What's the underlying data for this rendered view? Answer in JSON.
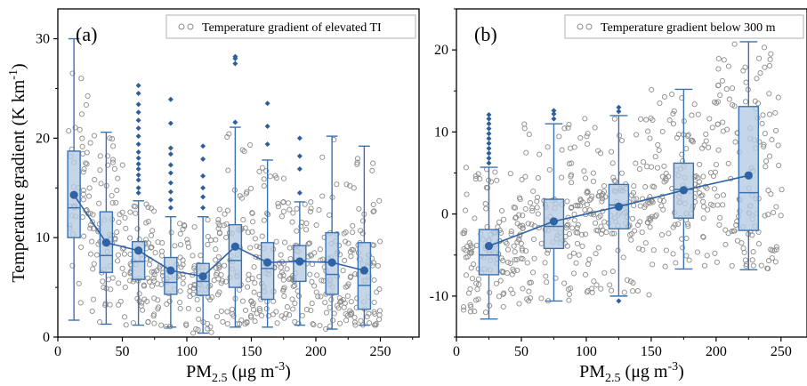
{
  "colors": {
    "box_fill": "#b8cce4",
    "box_stroke": "#3a72b0",
    "mean": "#2e63a6",
    "outlier": "#2e5f9a",
    "scatter": "#8c8c8c",
    "axis": "#000000"
  },
  "chart_data": [
    {
      "type": "box+scatter",
      "panel_label": "(a)",
      "xlabel": "PM",
      "xlabel_sub": "2.5",
      "xlabel_unit": " (μg m",
      "xlabel_sup": "-3",
      "xlabel_close": ")",
      "ylabel": "Temperature gradient (K km",
      "ylabel_sup": "-1",
      "ylabel_close": ")",
      "xlim": [
        0,
        280
      ],
      "ylim": [
        0,
        33
      ],
      "xticks": [
        0,
        50,
        100,
        150,
        200,
        250
      ],
      "yticks": [
        0,
        10,
        20,
        30
      ],
      "legend": "Temperature gradient of elevated TI",
      "legend_position": "top-right",
      "scatter_range": {
        "x": [
          8,
          280
        ],
        "y": [
          0.3,
          27
        ]
      },
      "boxes": [
        {
          "x": 12.5,
          "whislo": 1.7,
          "q1": 10.0,
          "med": 13.0,
          "q3": 18.7,
          "whishi": 30.0,
          "mean": 14.3,
          "fliers": []
        },
        {
          "x": 37.5,
          "whislo": 1.3,
          "q1": 6.5,
          "med": 8.2,
          "q3": 12.6,
          "whishi": 20.6,
          "mean": 9.5,
          "fliers": []
        },
        {
          "x": 62.5,
          "whislo": 1.2,
          "q1": 5.8,
          "med": 7.6,
          "q3": 9.6,
          "whishi": 13.7,
          "mean": 8.7,
          "fliers": [
            14.5,
            15.0,
            15.8,
            16.3,
            16.9,
            17.4,
            18.0,
            18.6,
            19.4,
            20.2,
            21.0,
            21.8,
            22.6,
            23.4,
            24.5,
            25.3
          ]
        },
        {
          "x": 87.5,
          "whislo": 1.0,
          "q1": 4.3,
          "med": 5.5,
          "q3": 8.0,
          "whishi": 12.1,
          "mean": 6.7,
          "fliers": [
            13.0,
            13.8,
            14.6,
            15.5,
            16.5,
            17.3,
            18.4,
            19.0,
            21.5,
            23.9
          ]
        },
        {
          "x": 112.5,
          "whislo": 0.4,
          "q1": 4.2,
          "med": 5.6,
          "q3": 7.4,
          "whishi": 12.1,
          "mean": 6.1,
          "fliers": [
            13.0,
            14.1,
            15.0,
            16.2,
            17.9,
            19.2
          ]
        },
        {
          "x": 137.5,
          "whislo": 1.0,
          "q1": 5.0,
          "med": 7.7,
          "q3": 11.3,
          "whishi": 21.1,
          "mean": 9.1,
          "fliers": [
            21.6,
            27.5,
            28.0,
            28.2
          ]
        },
        {
          "x": 162.5,
          "whislo": 1.0,
          "q1": 3.8,
          "med": 6.9,
          "q3": 9.5,
          "whishi": 17.8,
          "mean": 7.5,
          "fliers": [
            19.4,
            21.2,
            23.5
          ]
        },
        {
          "x": 187.5,
          "whislo": 1.2,
          "q1": 5.6,
          "med": 7.7,
          "q3": 9.2,
          "whishi": 13.6,
          "mean": 7.6,
          "fliers": [
            14.5,
            16.9,
            18.2,
            20.0
          ]
        },
        {
          "x": 212.5,
          "whislo": 0.8,
          "q1": 4.3,
          "med": 6.3,
          "q3": 10.5,
          "whishi": 20.2,
          "mean": 7.5,
          "fliers": []
        },
        {
          "x": 237.5,
          "whislo": 1.2,
          "q1": 2.8,
          "med": 5.2,
          "q3": 9.5,
          "whishi": 19.2,
          "mean": 6.7,
          "fliers": []
        }
      ]
    },
    {
      "type": "box+scatter",
      "panel_label": "(b)",
      "xlabel": "PM",
      "xlabel_sub": "2.5",
      "xlabel_unit": " (μg m",
      "xlabel_sup": "-3",
      "xlabel_close": ")",
      "xlim": [
        0,
        270
      ],
      "ylim": [
        -15,
        25
      ],
      "xticks": [
        0,
        50,
        100,
        150,
        200,
        250
      ],
      "yticks": [
        -10,
        0,
        10,
        20
      ],
      "legend": "Temperature gradient below 300 m",
      "legend_position": "top-right",
      "scatter_range": {
        "x": [
          5,
          270
        ],
        "y": [
          -12,
          21
        ]
      },
      "boxes": [
        {
          "x": 25,
          "whislo": -12.8,
          "q1": -7.4,
          "med": -5.0,
          "q3": -1.9,
          "whishi": 5.7,
          "mean": -3.9,
          "fliers": [
            6.2,
            6.8,
            7.4,
            8.0,
            8.6,
            9.2,
            9.8,
            10.4,
            11.0,
            11.6,
            12.1
          ]
        },
        {
          "x": 75,
          "whislo": -10.6,
          "q1": -4.2,
          "med": -1.5,
          "q3": 1.8,
          "whishi": 11.0,
          "mean": -0.9,
          "fliers": [
            11.6,
            12.2,
            12.6
          ]
        },
        {
          "x": 125,
          "whislo": -10.0,
          "q1": -1.8,
          "med": 1.1,
          "q3": 3.6,
          "whishi": 12.0,
          "mean": 0.9,
          "fliers": [
            -10.6,
            12.5,
            13.0
          ]
        },
        {
          "x": 175,
          "whislo": -6.7,
          "q1": -0.5,
          "med": 3.0,
          "q3": 6.2,
          "whishi": 15.2,
          "mean": 2.9,
          "fliers": []
        },
        {
          "x": 225,
          "whislo": -6.8,
          "q1": -2.0,
          "med": 2.6,
          "q3": 13.1,
          "whishi": 21.0,
          "mean": 4.7,
          "fliers": []
        }
      ]
    }
  ]
}
